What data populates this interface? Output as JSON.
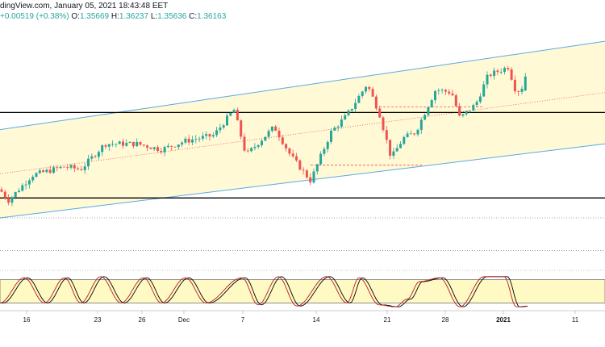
{
  "header": {
    "source": "dingView.com, January 05, 2021 18:43:48 EET",
    "change": "+0.00519 (+0.38%)",
    "o_label": "O:",
    "o_value": "1.35669",
    "h_label": "H:",
    "h_value": "1.36237",
    "l_label": "L:",
    "l_value": "1.35636",
    "c_label": "C:",
    "c_value": "1.36163"
  },
  "colors": {
    "up": "#26a69a",
    "down": "#ef5350",
    "channel_line": "#5aa9e6",
    "channel_fill": "#fff9d6",
    "median_line": "#ef5350",
    "level_line": "#000000",
    "stoch_k": "#b71c1c",
    "stoch_d": "#000000",
    "stoch_band": "#fff9c4"
  },
  "chart_data": [
    {
      "type": "candlestick",
      "title": "",
      "xlabel": "",
      "ylabel": "",
      "x_tick_labels": [
        "16",
        "23",
        "26",
        "Dec",
        "7",
        "14",
        "21",
        "28",
        "2021",
        "11"
      ],
      "ylim": [
        1.295,
        1.38
      ],
      "grid": false,
      "legend": "none",
      "last_candle": {
        "open": 1.35669,
        "high": 1.36237,
        "low": 1.35636,
        "close": 1.36163
      },
      "horizontal_levels": [
        1.349,
        1.319
      ],
      "dotted_levels": [
        1.312,
        1.3005,
        1.2895
      ],
      "channel": {
        "start_upper": 1.343,
        "end_upper": 1.374,
        "start_lower": 1.312,
        "end_lower": 1.338
      },
      "support_dash_levels": [
        1.351,
        1.3305
      ]
    },
    {
      "type": "line",
      "title": "",
      "ylim": [
        0,
        100
      ],
      "band": [
        20,
        80
      ],
      "series": [
        {
          "values": []
        },
        {
          "values": []
        }
      ]
    }
  ]
}
